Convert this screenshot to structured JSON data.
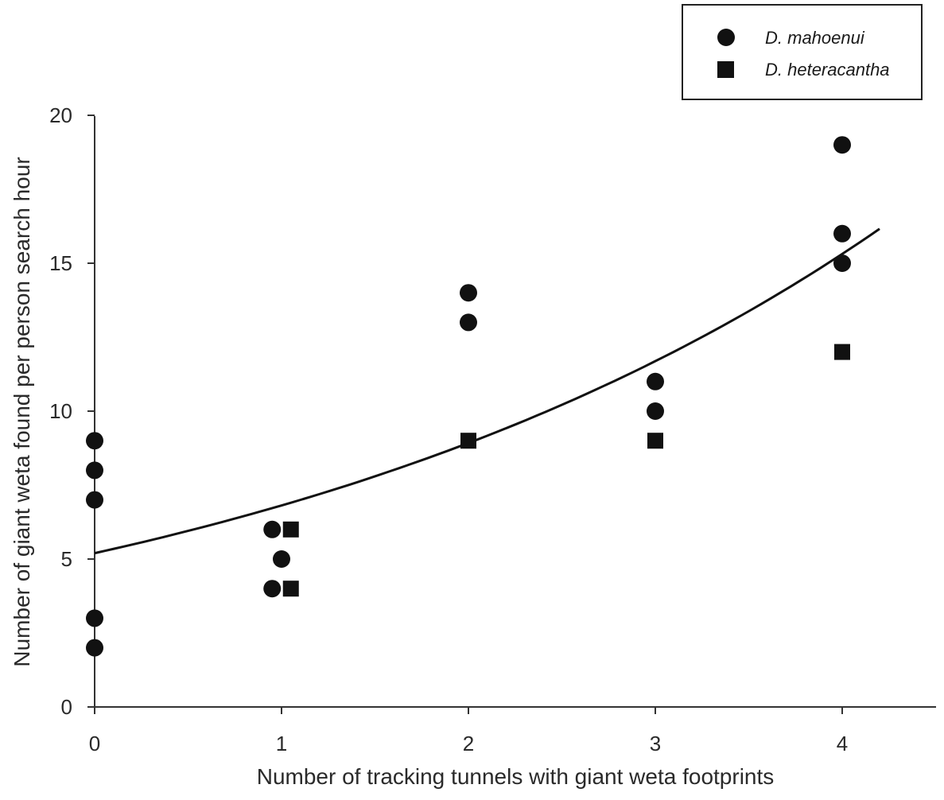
{
  "chart_data": {
    "type": "scatter",
    "xlabel": "Number of tracking tunnels with giant weta footprints",
    "ylabel": "Number of giant weta found per person search hour",
    "xlim": [
      0,
      4.5
    ],
    "ylim": [
      0,
      20
    ],
    "x_ticks": [
      "0",
      "1",
      "2",
      "3",
      "4"
    ],
    "y_ticks": [
      "0",
      "5",
      "10",
      "15",
      "20"
    ],
    "legend_position": "top-right",
    "grid": false,
    "series": [
      {
        "name": "D. mahoenui",
        "marker": "circle",
        "color": "#111111",
        "points": [
          {
            "x": 0,
            "y": 9
          },
          {
            "x": 0,
            "y": 8
          },
          {
            "x": 0,
            "y": 7
          },
          {
            "x": 0,
            "y": 3
          },
          {
            "x": 0,
            "y": 2
          },
          {
            "x": 0.95,
            "y": 6
          },
          {
            "x": 1,
            "y": 5
          },
          {
            "x": 0.95,
            "y": 4
          },
          {
            "x": 2,
            "y": 14
          },
          {
            "x": 2,
            "y": 13
          },
          {
            "x": 3,
            "y": 11
          },
          {
            "x": 3,
            "y": 10
          },
          {
            "x": 4,
            "y": 19
          },
          {
            "x": 4,
            "y": 16
          },
          {
            "x": 4,
            "y": 15
          }
        ]
      },
      {
        "name": "D. heteracantha",
        "marker": "square",
        "color": "#111111",
        "points": [
          {
            "x": 1.05,
            "y": 6
          },
          {
            "x": 1.05,
            "y": 4
          },
          {
            "x": 2,
            "y": 9
          },
          {
            "x": 3,
            "y": 9
          },
          {
            "x": 4,
            "y": 12
          }
        ]
      }
    ],
    "trend_line": {
      "type": "exponential",
      "a": 5.2,
      "b": 0.27,
      "x_range": [
        0,
        4.2
      ]
    }
  }
}
